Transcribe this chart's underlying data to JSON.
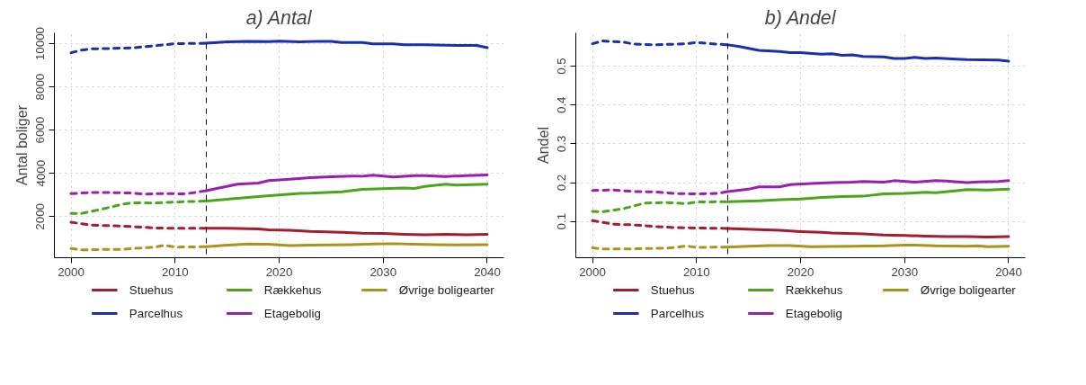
{
  "chart_data": [
    {
      "type": "line",
      "title": "a) Antal",
      "ylabel": "Antal boliger",
      "xlim": [
        1998.4,
        2041.6
      ],
      "xticks": [
        2000,
        2010,
        2020,
        2030,
        2040
      ],
      "ylim": [
        100,
        10500
      ],
      "yticks": [
        2000,
        4000,
        6000,
        8000,
        10000
      ],
      "grid": true,
      "legend": "bottom",
      "ref_lines": [
        {
          "axis": "x",
          "value": 2013,
          "color": "#000000",
          "line_style": "dashed"
        }
      ],
      "series": [
        {
          "name": "Stuehus",
          "color": "#a51c30",
          "line_style": "solid",
          "x": [
            2013,
            2015,
            2018,
            2019,
            2021,
            2023,
            2026,
            2028,
            2030,
            2032,
            2034,
            2036,
            2038,
            2040
          ],
          "values": [
            1460,
            1460,
            1430,
            1390,
            1370,
            1320,
            1280,
            1230,
            1220,
            1180,
            1160,
            1180,
            1160,
            1180
          ]
        },
        {
          "name": "Parcelhus",
          "color": "#1a2fae",
          "line_style": "solid",
          "x": [
            2013,
            2015,
            2017,
            2019,
            2020,
            2022,
            2024,
            2025,
            2026,
            2028,
            2029,
            2031,
            2032,
            2034,
            2036,
            2037,
            2039,
            2040
          ],
          "values": [
            10020,
            10080,
            10100,
            10090,
            10120,
            10080,
            10110,
            10100,
            10050,
            10050,
            9990,
            9990,
            9950,
            9950,
            9930,
            9920,
            9920,
            9810
          ]
        },
        {
          "name": "Rækkehus",
          "color": "#4aa51c",
          "line_style": "solid",
          "x": [
            2013,
            2016,
            2018,
            2020,
            2022,
            2023,
            2025,
            2026,
            2028,
            2030,
            2032,
            2033,
            2034,
            2036,
            2037,
            2040
          ],
          "values": [
            2720,
            2850,
            2930,
            3000,
            3070,
            3080,
            3130,
            3150,
            3260,
            3290,
            3320,
            3300,
            3400,
            3500,
            3460,
            3500
          ]
        },
        {
          "name": "Etagebolig",
          "color": "#9b1fae",
          "line_style": "solid",
          "x": [
            2013,
            2014,
            2016,
            2018,
            2019,
            2021,
            2023,
            2025,
            2027,
            2028,
            2029,
            2031,
            2033,
            2034,
            2036,
            2038,
            2040
          ],
          "values": [
            3200,
            3300,
            3500,
            3550,
            3670,
            3730,
            3800,
            3840,
            3880,
            3870,
            3920,
            3830,
            3900,
            3900,
            3850,
            3900,
            3930
          ]
        },
        {
          "name": "Øvrige boligearter",
          "color": "#a8951a",
          "line_style": "solid",
          "x": [
            2013,
            2015,
            2017,
            2019,
            2021,
            2023,
            2025,
            2027,
            2029,
            2031,
            2033,
            2035,
            2037,
            2040
          ],
          "values": [
            610,
            680,
            730,
            720,
            660,
            680,
            690,
            700,
            730,
            750,
            720,
            700,
            690,
            700
          ]
        },
        {
          "color": "#a51c30",
          "line_style": "dashed",
          "x": [
            2000,
            2002,
            2005,
            2008,
            2010,
            2013
          ],
          "values": [
            1740,
            1610,
            1560,
            1480,
            1460,
            1460
          ]
        },
        {
          "color": "#1a2fae",
          "line_style": "dashed",
          "x": [
            2000,
            2001,
            2002,
            2004,
            2006,
            2008,
            2010,
            2013
          ],
          "values": [
            9580,
            9700,
            9760,
            9780,
            9810,
            9900,
            10000,
            10020
          ]
        },
        {
          "color": "#4aa51c",
          "line_style": "dashed",
          "x": [
            2000,
            2001,
            2003,
            2005,
            2006,
            2008,
            2010,
            2013
          ],
          "values": [
            2150,
            2150,
            2350,
            2580,
            2640,
            2630,
            2680,
            2720
          ]
        },
        {
          "color": "#9b1fae",
          "line_style": "dashed",
          "x": [
            2000,
            2002,
            2004,
            2006,
            2007,
            2009,
            2011,
            2013
          ],
          "values": [
            3060,
            3120,
            3110,
            3090,
            3040,
            3070,
            3050,
            3200
          ]
        },
        {
          "color": "#a8951a",
          "line_style": "dashed",
          "x": [
            2000,
            2001,
            2003,
            2005,
            2007,
            2008,
            2009,
            2010,
            2013
          ],
          "values": [
            530,
            460,
            480,
            490,
            560,
            580,
            680,
            590,
            610
          ]
        }
      ]
    },
    {
      "type": "line",
      "title": "b) Andel",
      "ylabel": "Andel",
      "xlim": [
        1998.4,
        2041.6
      ],
      "xticks": [
        2000,
        2010,
        2020,
        2030,
        2040
      ],
      "ylim": [
        0.0065,
        0.586
      ],
      "yticks": [
        0.1,
        0.2,
        0.3,
        0.4,
        0.5
      ],
      "grid": true,
      "legend": "bottom",
      "ref_lines": [
        {
          "axis": "x",
          "value": 2013,
          "color": "#000000",
          "line_style": "dashed"
        }
      ],
      "series": [
        {
          "name": "Stuehus",
          "color": "#a51c30",
          "line_style": "solid",
          "x": [
            2013,
            2016,
            2018,
            2020,
            2022,
            2023,
            2026,
            2028,
            2030,
            2032,
            2034,
            2036,
            2038,
            2040
          ],
          "values": [
            0.082,
            0.079,
            0.077,
            0.074,
            0.072,
            0.07,
            0.068,
            0.065,
            0.064,
            0.062,
            0.061,
            0.061,
            0.06,
            0.061
          ]
        },
        {
          "name": "Parcelhus",
          "color": "#1a2fae",
          "line_style": "solid",
          "x": [
            2013,
            2014,
            2016,
            2018,
            2019,
            2020,
            2022,
            2023,
            2024,
            2025,
            2026,
            2028,
            2029,
            2030,
            2031,
            2032,
            2033,
            2035,
            2036,
            2039,
            2040
          ],
          "values": [
            0.555,
            0.551,
            0.541,
            0.538,
            0.535,
            0.535,
            0.531,
            0.532,
            0.528,
            0.529,
            0.525,
            0.524,
            0.52,
            0.52,
            0.523,
            0.52,
            0.521,
            0.518,
            0.517,
            0.516,
            0.513
          ]
        },
        {
          "name": "Rækkehus",
          "color": "#4aa51c",
          "line_style": "solid",
          "x": [
            2013,
            2016,
            2018,
            2020,
            2022,
            2024,
            2026,
            2028,
            2030,
            2032,
            2033,
            2035,
            2036,
            2038,
            2040
          ],
          "values": [
            0.151,
            0.153,
            0.156,
            0.158,
            0.162,
            0.164,
            0.165,
            0.171,
            0.172,
            0.175,
            0.174,
            0.179,
            0.182,
            0.181,
            0.183
          ]
        },
        {
          "name": "Etagebolig",
          "color": "#9b1fae",
          "line_style": "solid",
          "x": [
            2013,
            2015,
            2016,
            2018,
            2019,
            2021,
            2023,
            2025,
            2026,
            2028,
            2029,
            2031,
            2033,
            2034,
            2036,
            2037,
            2039,
            2040
          ],
          "values": [
            0.177,
            0.183,
            0.189,
            0.189,
            0.195,
            0.198,
            0.2,
            0.201,
            0.203,
            0.201,
            0.205,
            0.201,
            0.205,
            0.204,
            0.2,
            0.202,
            0.203,
            0.205
          ]
        },
        {
          "name": "Øvrige boligearter",
          "color": "#a8951a",
          "line_style": "solid",
          "x": [
            2013,
            2015,
            2017,
            2019,
            2021,
            2025,
            2028,
            2030,
            2031,
            2033,
            2036,
            2037,
            2038,
            2040
          ],
          "values": [
            0.034,
            0.036,
            0.038,
            0.038,
            0.035,
            0.036,
            0.037,
            0.039,
            0.039,
            0.037,
            0.036,
            0.037,
            0.035,
            0.036
          ]
        },
        {
          "color": "#a51c30",
          "line_style": "dashed",
          "x": [
            2000,
            2002,
            2004,
            2006,
            2008,
            2010,
            2013
          ],
          "values": [
            0.102,
            0.093,
            0.091,
            0.087,
            0.084,
            0.083,
            0.082
          ]
        },
        {
          "color": "#1a2fae",
          "line_style": "dashed",
          "x": [
            2000,
            2001,
            2003,
            2004,
            2006,
            2009,
            2010,
            2013
          ],
          "values": [
            0.558,
            0.565,
            0.562,
            0.557,
            0.555,
            0.558,
            0.561,
            0.555
          ]
        },
        {
          "color": "#4aa51c",
          "line_style": "dashed",
          "x": [
            2000,
            2001,
            2003,
            2005,
            2007,
            2009,
            2010,
            2013
          ],
          "values": [
            0.126,
            0.125,
            0.133,
            0.147,
            0.149,
            0.146,
            0.15,
            0.151
          ]
        },
        {
          "color": "#9b1fae",
          "line_style": "dashed",
          "x": [
            2000,
            2002,
            2004,
            2006,
            2008,
            2010,
            2012,
            2013
          ],
          "values": [
            0.18,
            0.181,
            0.177,
            0.176,
            0.172,
            0.171,
            0.172,
            0.177
          ]
        },
        {
          "color": "#a8951a",
          "line_style": "dashed",
          "x": [
            2000,
            2001,
            2003,
            2005,
            2007,
            2008,
            2009,
            2010,
            2013
          ],
          "values": [
            0.032,
            0.029,
            0.029,
            0.03,
            0.031,
            0.033,
            0.037,
            0.033,
            0.034
          ]
        }
      ]
    }
  ]
}
